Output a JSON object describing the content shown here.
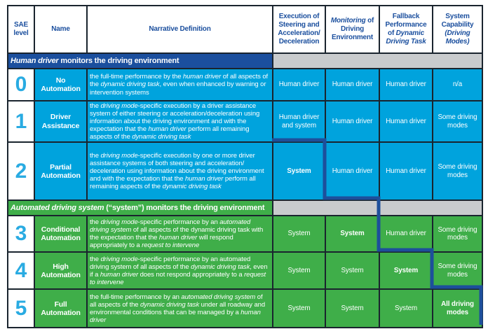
{
  "colors": {
    "cyan_cell": "#00a3dd",
    "green_cell": "#3fae49",
    "navy_band": "#1b4f9e",
    "gray_band": "#c9cbcd",
    "grid_line": "#1a242e",
    "level_number": "#29abe2",
    "header_text": "#1b4f9e",
    "boundary_line": "#1d4f9b"
  },
  "header": {
    "columns": [
      "SAE level",
      "Name",
      "Narrative Definition",
      "Execution of Steering and Acceleration/​Deceleration",
      "*Monitoring* of Driving Environment",
      "Fallback Performance of *Dynamic Driving Task*",
      "System Capability *(Driving Modes)*"
    ]
  },
  "sections": [
    {
      "title": "*Human driver* monitors the driving environment"
    },
    {
      "title": "*Automated driving system* (“system”) monitors the driving environment"
    }
  ],
  "rows": [
    {
      "level": "0",
      "name": "No Automation",
      "narrative": "the full-time performance by the *human driver* of all aspects of the *dynamic driving task*, even when enhanced by warning or intervention systems",
      "cells": [
        {
          "text": "Human driver",
          "bold": false
        },
        {
          "text": "Human driver",
          "bold": false
        },
        {
          "text": "Human driver",
          "bold": false
        },
        {
          "text": "n/a",
          "bold": false
        }
      ]
    },
    {
      "level": "1",
      "name": "Driver Assistance",
      "narrative": "the *driving mode*-specific execution by a driver assistance system of either steering or acceleration/​deceleration using information about the driving environment and with the expectation that the *human driver* perform all remaining aspects of the *dynamic driving task*",
      "cells": [
        {
          "text": "Human driver and system",
          "bold": false
        },
        {
          "text": "Human driver",
          "bold": false
        },
        {
          "text": "Human driver",
          "bold": false
        },
        {
          "text": "Some driving modes",
          "bold": false
        }
      ]
    },
    {
      "level": "2",
      "name": "Partial Automation",
      "narrative": "the *driving mode*-specific execution by one or more driver assistance systems of both steering and acceleration/​deceleration using information about the driving environment and with the expectation that the *human driver* perform all remaining aspects of the *dynamic driving task*",
      "cells": [
        {
          "text": "System",
          "bold": true
        },
        {
          "text": "Human driver",
          "bold": false
        },
        {
          "text": "Human driver",
          "bold": false
        },
        {
          "text": "Some driving modes",
          "bold": false
        }
      ]
    },
    {
      "level": "3",
      "name": "Conditional Automation",
      "narrative": "the *driving mode*-specific performance by an *automated driving system* of all aspects of the dynamic driving task with the expectation that the *human driver* will respond appropriately to a *request to intervene*",
      "cells": [
        {
          "text": "System",
          "bold": false
        },
        {
          "text": "System",
          "bold": true
        },
        {
          "text": "Human driver",
          "bold": false
        },
        {
          "text": "Some driving modes",
          "bold": false
        }
      ]
    },
    {
      "level": "4",
      "name": "High Automation",
      "narrative": "the *driving mode*-specific performance by an automated driving system of all aspects of the *dynamic driving task*, even if a *human driver* does not respond appropriately to a *request to intervene*",
      "cells": [
        {
          "text": "System",
          "bold": false
        },
        {
          "text": "System",
          "bold": false
        },
        {
          "text": "System",
          "bold": true
        },
        {
          "text": "Some driving modes",
          "bold": false
        }
      ]
    },
    {
      "level": "5",
      "name": "Full Automation",
      "narrative": "the full-time performance by an *automated driving system* of all aspects of the *dynamic driving task* under all roadway and environmental conditions that can be managed by a *human driver*",
      "cells": [
        {
          "text": "System",
          "bold": false
        },
        {
          "text": "System",
          "bold": false
        },
        {
          "text": "System",
          "bold": false
        },
        {
          "text": "All driving modes",
          "bold": true
        }
      ]
    }
  ]
}
